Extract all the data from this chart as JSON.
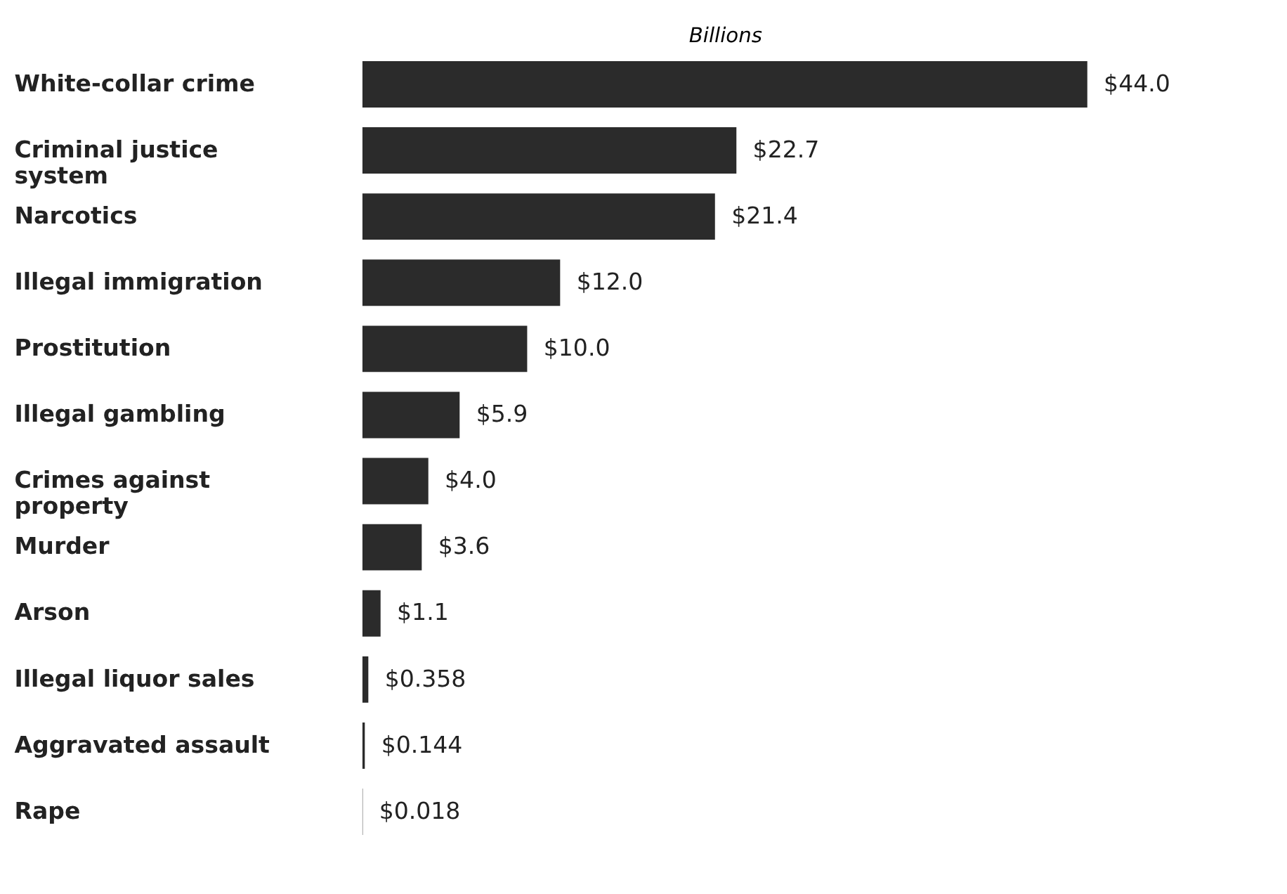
{
  "chart_data": {
    "type": "bar",
    "orientation": "horizontal",
    "xlabel": "Billions",
    "categories": [
      "White-collar crime",
      "Criminal justice\nsystem",
      "Narcotics",
      "Illegal immigration",
      "Prostitution",
      "Illegal gambling",
      "Crimes against\nproperty",
      "Murder",
      "Arson",
      "Illegal liquor sales",
      "Aggravated assault",
      "Rape"
    ],
    "values": [
      44.0,
      22.7,
      21.4,
      12.0,
      10.0,
      5.9,
      4.0,
      3.6,
      1.1,
      0.358,
      0.144,
      0.018
    ],
    "value_labels": [
      "$44.0",
      "$22.7",
      "$21.4",
      "$12.0",
      "$10.0",
      "$5.9",
      "$4.0",
      "$3.6",
      "$1.1",
      "$0.358",
      "$0.144",
      "$0.018"
    ],
    "color": "#2b2b2b"
  }
}
